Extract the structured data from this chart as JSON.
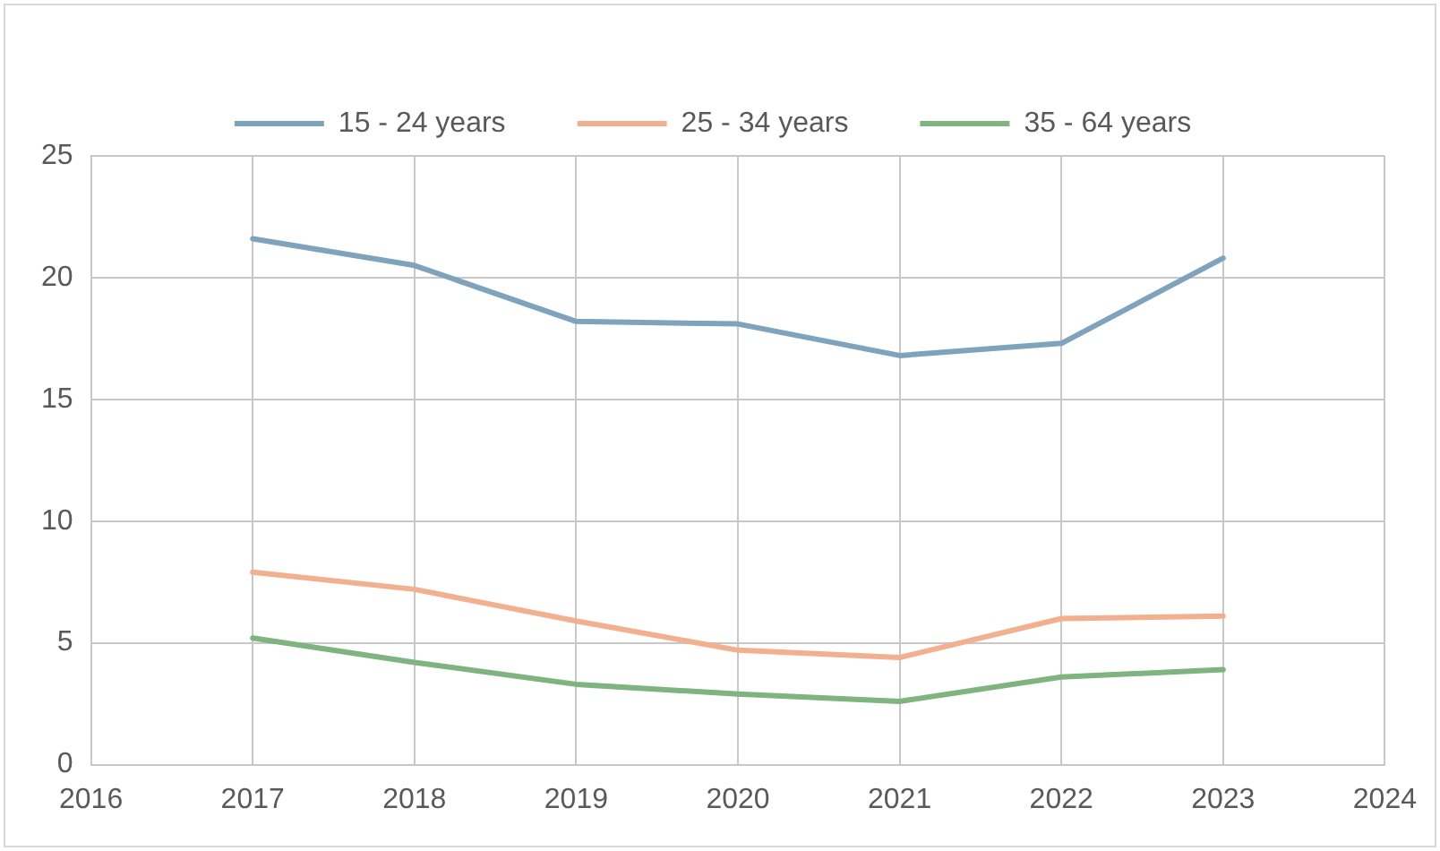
{
  "chart_data": {
    "type": "line",
    "x": [
      2017,
      2018,
      2019,
      2020,
      2021,
      2022,
      2023
    ],
    "series": [
      {
        "name": "15 - 24 years",
        "color": "#7fa3bd",
        "values": [
          21.6,
          20.5,
          18.2,
          18.1,
          16.8,
          17.3,
          20.8
        ]
      },
      {
        "name": "25 - 34 years",
        "color": "#f2b08f",
        "values": [
          7.9,
          7.2,
          5.9,
          4.7,
          4.4,
          6.0,
          6.1
        ]
      },
      {
        "name": "35 - 64 years",
        "color": "#7fb37f",
        "values": [
          5.2,
          4.2,
          3.3,
          2.9,
          2.6,
          3.6,
          3.9
        ]
      }
    ],
    "xlim": [
      2016,
      2024
    ],
    "xticks": [
      2016,
      2017,
      2018,
      2019,
      2020,
      2021,
      2022,
      2023,
      2024
    ],
    "ylim": [
      0,
      25
    ],
    "yticks": [
      0,
      5,
      10,
      15,
      20,
      25
    ],
    "grid": true,
    "legend": "top",
    "marker": "none",
    "line_style": "solid"
  }
}
